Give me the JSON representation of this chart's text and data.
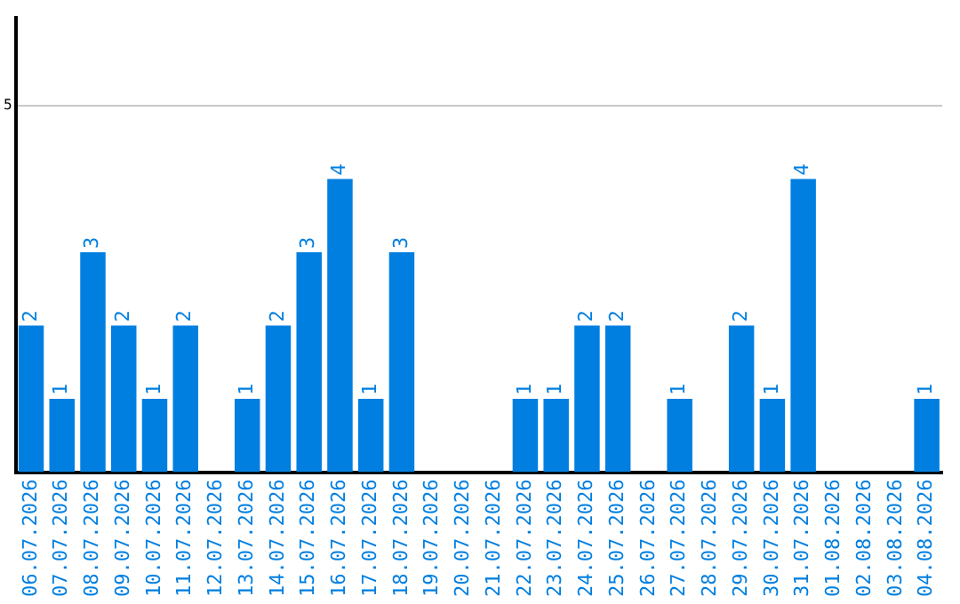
{
  "chart_data": {
    "type": "bar",
    "categories": [
      "06.07.2026",
      "07.07.2026",
      "08.07.2026",
      "09.07.2026",
      "10.07.2026",
      "11.07.2026",
      "12.07.2026",
      "13.07.2026",
      "14.07.2026",
      "15.07.2026",
      "16.07.2026",
      "17.07.2026",
      "18.07.2026",
      "19.07.2026",
      "20.07.2026",
      "21.07.2026",
      "22.07.2026",
      "23.07.2026",
      "24.07.2026",
      "25.07.2026",
      "26.07.2026",
      "27.07.2026",
      "28.07.2026",
      "29.07.2026",
      "30.07.2026",
      "31.07.2026",
      "01.08.2026",
      "02.08.2026",
      "03.08.2026",
      "04.08.2026"
    ],
    "values": [
      2,
      1,
      3,
      2,
      1,
      2,
      0,
      1,
      2,
      3,
      4,
      1,
      3,
      0,
      0,
      0,
      1,
      1,
      2,
      2,
      0,
      1,
      0,
      2,
      1,
      4,
      0,
      0,
      0,
      1
    ],
    "value_labels": [
      "2",
      "1",
      "3",
      "2",
      "1",
      "2",
      null,
      "1",
      "2",
      "3",
      "4",
      "1",
      "3",
      null,
      null,
      null,
      "1",
      "1",
      "2",
      "2",
      null,
      "1",
      null,
      "2",
      "1",
      "4",
      null,
      null,
      null,
      "1"
    ],
    "color": "#007fe0",
    "ylim": [
      0,
      6.2
    ],
    "yticks": [
      5
    ],
    "grid": "y",
    "legend": false
  }
}
